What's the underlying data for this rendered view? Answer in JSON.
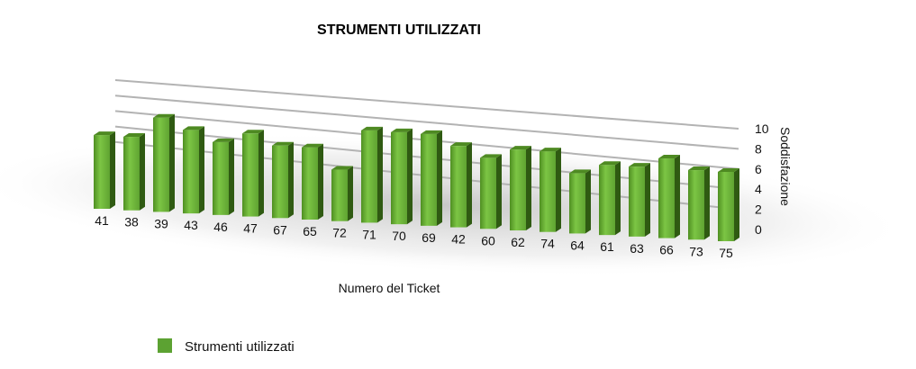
{
  "chart_data": {
    "type": "bar",
    "title": "STRUMENTI UTILIZZATI",
    "xlabel": "Numero del Ticket",
    "ylabel": "Soddisfazione",
    "categories": [
      "41",
      "38",
      "39",
      "43",
      "46",
      "47",
      "67",
      "65",
      "72",
      "71",
      "70",
      "69",
      "42",
      "60",
      "62",
      "74",
      "64",
      "61",
      "63",
      "66",
      "73",
      "75"
    ],
    "series": [
      {
        "name": "Strumenti utilizzati",
        "values": [
          7,
          7,
          9,
          8,
          7,
          8,
          7,
          7,
          5,
          9,
          9,
          9,
          8,
          7,
          8,
          8,
          6,
          7,
          7,
          8,
          7,
          7
        ]
      }
    ],
    "ylim": [
      0,
      10
    ],
    "yticks": [
      "0",
      "2",
      "4",
      "6",
      "8",
      "10"
    ],
    "grid": true,
    "legend_position": "bottom-left",
    "colors": {
      "bar_front": "#6db33f",
      "bar_top": "#4e8a22",
      "bar_side": "#2f5a12",
      "legend": "#5ca232",
      "grid": "#b3b3b3"
    }
  }
}
